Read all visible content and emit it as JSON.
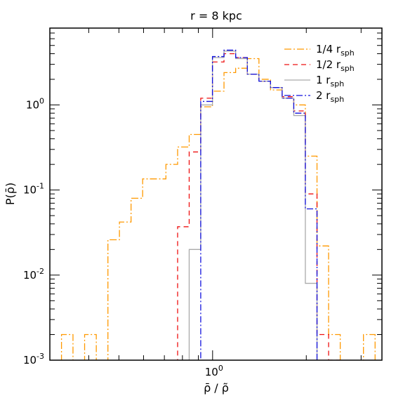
{
  "chart_data": {
    "type": "line",
    "title": "r = 8 kpc",
    "xlabel": "ρ̄ / ρ̃",
    "ylabel": "P(ρ̄)",
    "xscale": "log",
    "yscale": "log",
    "xlim": [
      0.3,
      3.5
    ],
    "ylim": [
      0.001,
      8
    ],
    "x_tick_labels": [
      {
        "value": 1.0,
        "base": "10",
        "exp": "0"
      }
    ],
    "y_tick_labels": [
      {
        "value": 1.0,
        "base": "10",
        "exp": "0"
      },
      {
        "value": 0.1,
        "base": "10",
        "exp": "-1"
      },
      {
        "value": 0.01,
        "base": "10",
        "exp": "-2"
      },
      {
        "value": 0.001,
        "base": "10",
        "exp": "-3"
      }
    ],
    "legend_position": "top-right",
    "bin_edges": [
      0.327,
      0.356,
      0.388,
      0.423,
      0.461,
      0.502,
      0.547,
      0.596,
      0.65,
      0.708,
      0.772,
      0.841,
      0.916,
      0.999,
      1.088,
      1.186,
      1.293,
      1.409,
      1.535,
      1.673,
      1.823,
      1.986,
      2.165,
      2.359,
      2.571,
      2.801,
      3.053,
      3.327
    ],
    "series": [
      {
        "name": "1/4",
        "subscript": "sph",
        "prefix": "r",
        "color": "#ff9900",
        "dash": "10,3,2,3",
        "values": [
          0.002,
          0,
          0.002,
          0,
          0.026,
          0.042,
          0.08,
          0.135,
          0.135,
          0.2,
          0.32,
          0.45,
          0.95,
          1.45,
          2.4,
          2.7,
          3.5,
          2.0,
          1.5,
          1.2,
          1.0,
          0.25,
          0.022,
          0.002,
          0,
          0,
          0.002
        ]
      },
      {
        "name": "1/2",
        "subscript": "sph",
        "prefix": "r",
        "color": "#ee1111",
        "dash": "7,5",
        "values": [
          0,
          0,
          0,
          0,
          0,
          0,
          0,
          0,
          0,
          0,
          0.037,
          0.28,
          1.2,
          3.2,
          4.0,
          3.6,
          2.3,
          1.9,
          1.6,
          1.25,
          0.85,
          0.09,
          0.002,
          0.001,
          0,
          0,
          0
        ]
      },
      {
        "name": "1",
        "subscript": "sph",
        "prefix": "r",
        "color": "#aaaaaa",
        "dash": "",
        "values": [
          0,
          0,
          0,
          0,
          0,
          0,
          0,
          0,
          0,
          0,
          0,
          0.02,
          1.0,
          3.6,
          4.3,
          3.5,
          2.3,
          1.9,
          1.6,
          1.2,
          0.75,
          0.008,
          0,
          0,
          0,
          0,
          0
        ]
      },
      {
        "name": "2",
        "subscript": "sph",
        "prefix": "r",
        "color": "#1111dd",
        "dash": "9,3,2,3",
        "values": [
          0,
          0,
          0,
          0,
          0,
          0,
          0,
          0,
          0,
          0,
          0,
          0,
          1.1,
          3.7,
          4.4,
          3.6,
          2.3,
          1.9,
          1.6,
          1.2,
          0.8,
          0.06,
          0,
          0,
          0,
          0,
          0
        ]
      }
    ]
  }
}
